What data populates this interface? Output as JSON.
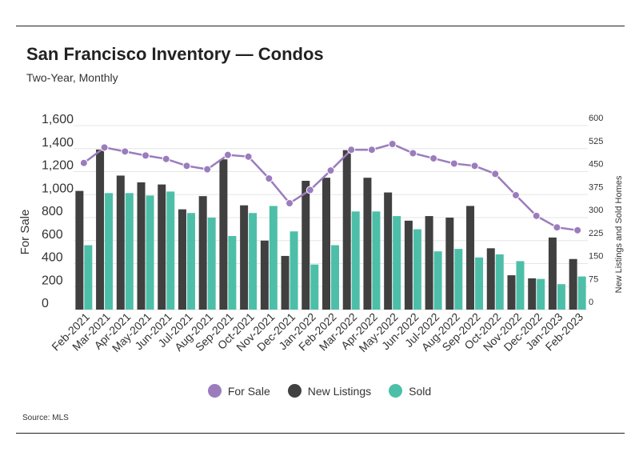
{
  "title": "San Francisco Inventory — Condos",
  "subtitle": "Two-Year, Monthly",
  "source": "Source: MLS",
  "colors": {
    "for_sale": "#9b7cbd",
    "new_listings": "#404040",
    "sold": "#4dbfa8",
    "grid": "#e6e6e6"
  },
  "legend": [
    {
      "label": "For Sale",
      "color": "#9b7cbd"
    },
    {
      "label": "New Listings",
      "color": "#404040"
    },
    {
      "label": "Sold",
      "color": "#4dbfa8"
    }
  ],
  "chart_data": {
    "type": "bar",
    "categories": [
      "Feb-2021",
      "Mar-2021",
      "Apr-2021",
      "May-2021",
      "Jun-2021",
      "Jul-2021",
      "Aug-2021",
      "Sep-2021",
      "Oct-2021",
      "Nov-2021",
      "Dec-2021",
      "Jan-2022",
      "Feb-2022",
      "Mar-2022",
      "Apr-2022",
      "May-2022",
      "Jun-2022",
      "Jul-2022",
      "Aug-2022",
      "Sep-2022",
      "Oct-2022",
      "Nov-2022",
      "Dec-2022",
      "Jan-2023",
      "Feb-2023"
    ],
    "ylabel": "For Sale",
    "y2label": "New Listings and Sold Homes",
    "ylim": [
      0,
      1600
    ],
    "y2lim": [
      0,
      600
    ],
    "yticks": [
      "0",
      "200",
      "400",
      "600",
      "800",
      "1,000",
      "1,200",
      "1,400",
      "1,600"
    ],
    "y2ticks": [
      "0",
      "75",
      "150",
      "225",
      "300",
      "375",
      "450",
      "525",
      "600"
    ],
    "grid": true,
    "legend_position": "bottom",
    "series": [
      {
        "name": "New Listings",
        "type": "bar",
        "axis": "right",
        "values": [
          387,
          522,
          437,
          415,
          408,
          327,
          370,
          490,
          340,
          225,
          175,
          420,
          430,
          520,
          430,
          382,
          290,
          305,
          300,
          338,
          200,
          112,
          102,
          235,
          165
        ]
      },
      {
        "name": "Sold",
        "type": "bar",
        "axis": "right",
        "values": [
          210,
          380,
          380,
          372,
          385,
          315,
          300,
          240,
          315,
          338,
          255,
          147,
          210,
          320,
          320,
          305,
          262,
          190,
          198,
          170,
          180,
          158,
          100,
          83,
          108
        ]
      },
      {
        "name": "For Sale",
        "type": "line",
        "axis": "left",
        "values": [
          1275,
          1410,
          1375,
          1340,
          1310,
          1250,
          1220,
          1345,
          1330,
          1140,
          925,
          1040,
          1210,
          1390,
          1390,
          1440,
          1360,
          1315,
          1270,
          1250,
          1180,
          995,
          815,
          715,
          690
        ]
      }
    ]
  }
}
